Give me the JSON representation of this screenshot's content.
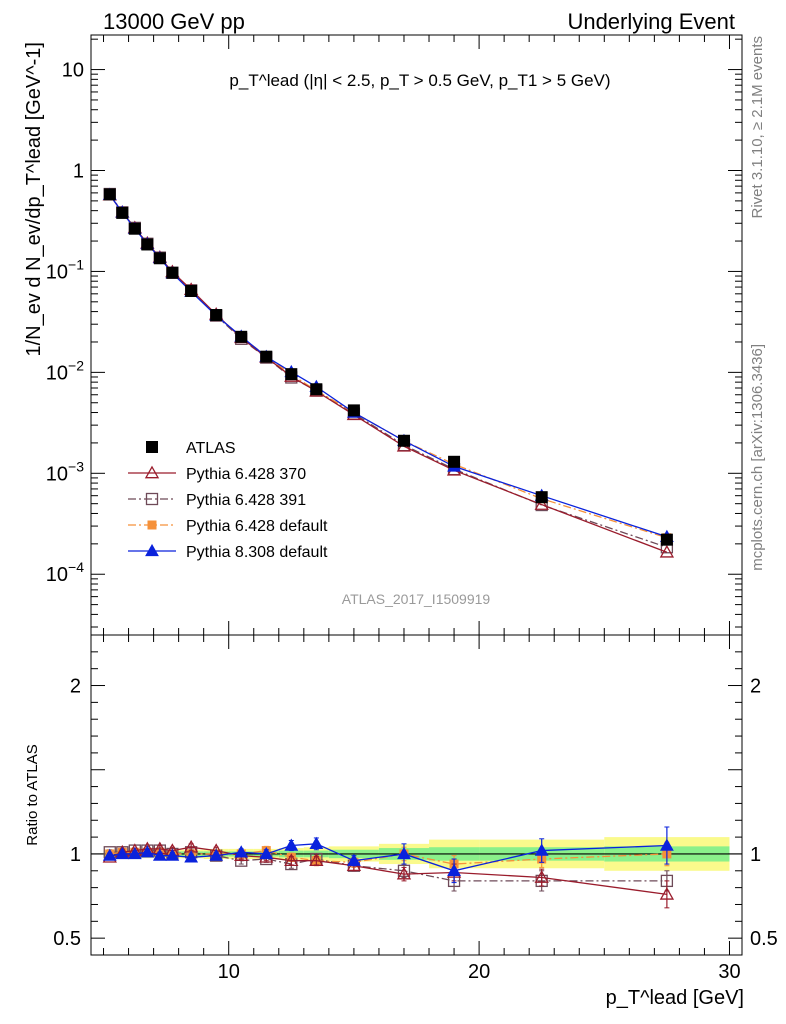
{
  "header": {
    "left": "13000 GeV pp",
    "right": "Underlying Event"
  },
  "side_text": {
    "top": "Rivet 3.1.10, ≥ 2.1M events",
    "bottom": "mcplots.cern.ch [arXiv:1306.3436]"
  },
  "analysis_label": "ATLAS_2017_I1509919",
  "colors": {
    "atlas": "#000000",
    "p370": "#9a1c2c",
    "p391": "#6e4a58",
    "p6def": "#f5913a",
    "p8def": "#0a22dc",
    "band_inner": "#8af08a",
    "band_outer": "#fafa8c"
  },
  "chart_data": [
    {
      "type": "scatter",
      "panel": "main",
      "title": "p_T^lead (|η| < 2.5, p_T > 0.5 GeV, p_T1 > 5 GeV)",
      "ylabel": "1/N_ev d N_ev/dp_T^lead [GeV^-1]",
      "xlim": [
        4.5,
        30.5
      ],
      "ylim": [
        2.5e-05,
        22
      ],
      "yscale": "log",
      "x_ticks": [
        10,
        20,
        30
      ],
      "y_ticks": [
        "10^-4",
        "10^-3",
        "10^-2",
        "10^-1",
        "1",
        "10"
      ],
      "legend_position": "lower-left",
      "x": [
        5.25,
        5.75,
        6.25,
        6.75,
        7.25,
        7.75,
        8.5,
        9.5,
        10.5,
        11.5,
        12.5,
        13.5,
        15.0,
        17.0,
        19.0,
        22.5,
        27.5
      ],
      "series": [
        {
          "name": "ATLAS",
          "key": "atlas",
          "marker": "square-filled",
          "line": "none",
          "values": [
            0.58,
            0.38,
            0.265,
            0.185,
            0.135,
            0.097,
            0.064,
            0.037,
            0.0225,
            0.0143,
            0.0096,
            0.0068,
            0.0042,
            0.0021,
            0.0013,
            0.00058,
            0.00022
          ]
        },
        {
          "name": "Pythia 6.428 370",
          "key": "p370",
          "marker": "triangle-open",
          "line": "solid",
          "values": [
            0.57,
            0.385,
            0.27,
            0.19,
            0.138,
            0.099,
            0.066,
            0.0375,
            0.022,
            0.0141,
            0.0091,
            0.0065,
            0.0038,
            0.00185,
            0.00107,
            0.00049,
            0.000165
          ]
        },
        {
          "name": "Pythia 6.428 391",
          "key": "p391",
          "marker": "square-open",
          "line": "dashdot",
          "values": [
            0.585,
            0.385,
            0.27,
            0.188,
            0.137,
            0.097,
            0.065,
            0.0365,
            0.0215,
            0.014,
            0.0089,
            0.0066,
            0.0039,
            0.0019,
            0.0011,
            0.000485,
            0.000185
          ]
        },
        {
          "name": "Pythia 6.428 default",
          "key": "p6def",
          "marker": "square-filled",
          "line": "dashdot",
          "values": [
            0.58,
            0.385,
            0.268,
            0.188,
            0.137,
            0.097,
            0.064,
            0.037,
            0.0225,
            0.0145,
            0.0095,
            0.0066,
            0.004,
            0.0021,
            0.00123,
            0.00056,
            0.00023
          ]
        },
        {
          "name": "Pythia 8.308 default",
          "key": "p8def",
          "marker": "triangle-filled",
          "line": "solid",
          "values": [
            0.575,
            0.385,
            0.265,
            0.187,
            0.136,
            0.096,
            0.063,
            0.0365,
            0.0227,
            0.0143,
            0.0101,
            0.0072,
            0.004,
            0.0021,
            0.00117,
            0.0006,
            0.000235
          ]
        }
      ]
    },
    {
      "type": "scatter",
      "panel": "ratio",
      "xlabel": "p_T^lead [GeV]",
      "ylabel": "Ratio to ATLAS",
      "xlim": [
        4.5,
        30.5
      ],
      "ylim": [
        0.4,
        2.3
      ],
      "y_ticks": [
        0.5,
        1,
        2
      ],
      "x_ticks": [
        10,
        20,
        30
      ],
      "uncertainty_band": {
        "edges": [
          5,
          5.5,
          6,
          6.5,
          7,
          7.5,
          8,
          9,
          10,
          11,
          12,
          13,
          14,
          16,
          18,
          20,
          25,
          30
        ],
        "inner": [
          0.015,
          0.015,
          0.015,
          0.015,
          0.015,
          0.015,
          0.015,
          0.015,
          0.015,
          0.015,
          0.02,
          0.02,
          0.025,
          0.035,
          0.04,
          0.04,
          0.045
        ],
        "outer": [
          0.025,
          0.025,
          0.025,
          0.025,
          0.025,
          0.025,
          0.025,
          0.03,
          0.03,
          0.03,
          0.035,
          0.04,
          0.045,
          0.06,
          0.085,
          0.085,
          0.1
        ]
      },
      "x": [
        5.25,
        5.75,
        6.25,
        6.75,
        7.25,
        7.75,
        8.5,
        9.5,
        10.5,
        11.5,
        12.5,
        13.5,
        15.0,
        17.0,
        19.0,
        22.5,
        27.5
      ],
      "series": [
        {
          "key": "p370",
          "values": [
            0.98,
            1.01,
            1.02,
            1.03,
            1.03,
            1.02,
            1.04,
            1.02,
            0.99,
            0.98,
            0.96,
            0.96,
            0.93,
            0.88,
            0.89,
            0.86,
            0.76
          ],
          "errors": [
            0.015,
            0.015,
            0.015,
            0.015,
            0.02,
            0.02,
            0.02,
            0.02,
            0.02,
            0.02,
            0.025,
            0.025,
            0.03,
            0.04,
            0.05,
            0.05,
            0.08
          ]
        },
        {
          "key": "p391",
          "values": [
            1.01,
            1.01,
            1.02,
            1.02,
            1.02,
            1.0,
            1.01,
            0.99,
            0.96,
            0.97,
            0.94,
            0.97,
            0.93,
            0.9,
            0.84,
            0.84,
            0.84
          ],
          "errors": [
            0.015,
            0.015,
            0.015,
            0.015,
            0.02,
            0.02,
            0.02,
            0.02,
            0.02,
            0.02,
            0.025,
            0.025,
            0.03,
            0.04,
            0.06,
            0.06,
            0.06
          ]
        },
        {
          "key": "p6def",
          "values": [
            1.0,
            1.01,
            1.01,
            1.01,
            1.01,
            1.0,
            1.0,
            1.0,
            1.0,
            1.02,
            0.98,
            0.96,
            0.95,
            1.0,
            0.94,
            0.97,
            1.0
          ],
          "errors": [
            0.015,
            0.015,
            0.015,
            0.015,
            0.02,
            0.02,
            0.02,
            0.02,
            0.02,
            0.025,
            0.025,
            0.03,
            0.03,
            0.04,
            0.05,
            0.05,
            0.07
          ]
        },
        {
          "key": "p8def",
          "values": [
            0.99,
            1.0,
            1.0,
            1.01,
            0.99,
            0.99,
            0.98,
            0.99,
            1.01,
            1.0,
            1.05,
            1.06,
            0.96,
            1.0,
            0.9,
            1.02,
            1.05
          ],
          "errors": [
            0.015,
            0.015,
            0.015,
            0.015,
            0.02,
            0.02,
            0.02,
            0.02,
            0.02,
            0.025,
            0.03,
            0.035,
            0.03,
            0.06,
            0.07,
            0.07,
            0.11
          ]
        }
      ]
    }
  ]
}
